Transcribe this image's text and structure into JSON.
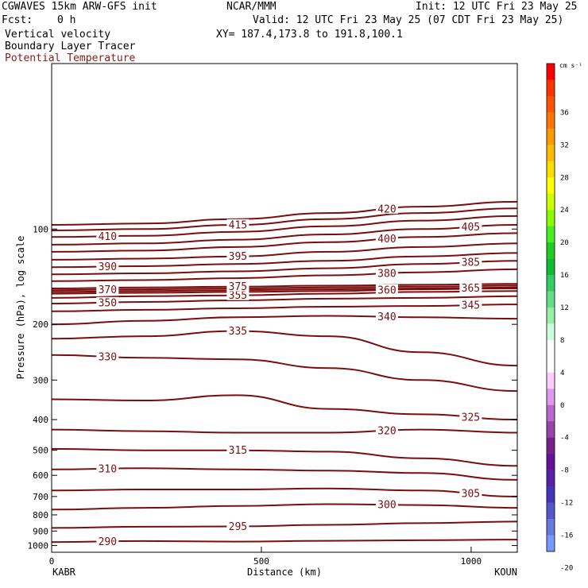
{
  "header": {
    "model": "CGWAVES 15km ARW-GFS init",
    "org": "NCAR/MMM",
    "init": "Init: 12 UTC Fri 23 May 25",
    "fcst_label": "Fcst:",
    "fcst_value": "0 h",
    "valid": "Valid: 12 UTC Fri 23 May 25 (07 CDT Fri 23 May 25)",
    "field1": "Vertical velocity",
    "xy": "XY= 187.4,173.8 to 191.8,100.1",
    "field2": "Boundary Layer Tracer",
    "field3": "Potential Temperature"
  },
  "colors": {
    "contour": "#7a0e0e",
    "field3_text": "#8b1a1a"
  },
  "chart_data": {
    "type": "line",
    "title": "",
    "xlabel": "Distance (km)",
    "ylabel": "Pressure (hPa), log scale",
    "y_scale": "log",
    "xlim": [
      0,
      1110
    ],
    "ylim": [
      1050,
      30
    ],
    "x_ticks": [
      0,
      500,
      1000
    ],
    "y_ticks": [
      100,
      200,
      300,
      400,
      500,
      600,
      700,
      800,
      900,
      1000
    ],
    "left_station": "KABR",
    "right_station": "KOUN",
    "x": [
      0,
      220,
      440,
      660,
      880,
      1110
    ],
    "series": [
      {
        "label": "290",
        "values": [
          975,
          968,
          972,
          966,
          962,
          958
        ]
      },
      {
        "label": "295",
        "values": [
          880,
          872,
          870,
          860,
          850,
          840
        ]
      },
      {
        "label": "300",
        "values": [
          770,
          760,
          750,
          740,
          745,
          760
        ]
      },
      {
        "label": "305",
        "values": [
          670,
          665,
          665,
          660,
          670,
          700
        ]
      },
      {
        "label": "310",
        "values": [
          575,
          570,
          575,
          580,
          590,
          620
        ]
      },
      {
        "label": "315",
        "values": [
          495,
          500,
          500,
          505,
          530,
          560
        ]
      },
      {
        "label": "320",
        "values": [
          430,
          435,
          440,
          440,
          430,
          440
        ]
      },
      {
        "label": "325",
        "values": [
          345,
          348,
          335,
          370,
          385,
          400
        ]
      },
      {
        "label": "330",
        "values": [
          250,
          255,
          258,
          275,
          300,
          325
        ]
      },
      {
        "label": "335",
        "values": [
          222,
          218,
          210,
          218,
          245,
          270
        ]
      },
      {
        "label": "340",
        "values": [
          200,
          195,
          190,
          188,
          190,
          192
        ]
      },
      {
        "label": "345",
        "values": [
          182,
          180,
          178,
          176,
          175,
          173
        ]
      },
      {
        "label": "350",
        "values": [
          172,
          170,
          168,
          166,
          165,
          163
        ]
      },
      {
        "label": "355",
        "values": [
          165,
          163,
          162,
          160,
          158,
          157
        ]
      },
      {
        "label": "360",
        "values": [
          160,
          159,
          158,
          157,
          155,
          154
        ]
      },
      {
        "label": "365",
        "values": [
          158,
          157,
          156,
          155,
          154,
          153
        ]
      },
      {
        "label": "370",
        "values": [
          156,
          155,
          154,
          153,
          152,
          151
        ]
      },
      {
        "label": "375",
        "values": [
          154,
          153,
          152,
          151,
          150,
          149
        ]
      },
      {
        "label": "380",
        "values": [
          146,
          145,
          143,
          140,
          137,
          134
        ]
      },
      {
        "label": "385",
        "values": [
          139,
          138,
          136,
          133,
          129,
          126
        ]
      },
      {
        "label": "390",
        "values": [
          132,
          131,
          129,
          126,
          122,
          119
        ]
      },
      {
        "label": "395",
        "values": [
          125,
          124,
          122,
          118,
          114,
          111
        ]
      },
      {
        "label": "400",
        "values": [
          118,
          117,
          114,
          110,
          106,
          103
        ]
      },
      {
        "label": "405",
        "values": [
          112,
          111,
          108,
          104,
          100,
          97
        ]
      },
      {
        "label": "410",
        "values": [
          106,
          105,
          102,
          98,
          94,
          91
        ]
      },
      {
        "label": "415",
        "values": [
          101,
          100,
          97,
          93,
          89,
          86
        ]
      },
      {
        "label": "420",
        "values": [
          97,
          96,
          93,
          89,
          85,
          82
        ]
      }
    ],
    "colorbar": {
      "unit": "cm s⁻¹",
      "labels": [
        "36",
        "32",
        "28",
        "24",
        "20",
        "16",
        "12",
        "8",
        "4",
        "0",
        "-4",
        "-8",
        "-12",
        "-16",
        "-20"
      ],
      "colors": [
        "#ff0000",
        "#ff3300",
        "#ff5500",
        "#ff7700",
        "#ff9900",
        "#ffbb00",
        "#ffdd00",
        "#ffff00",
        "#ccff00",
        "#88ff00",
        "#44ee22",
        "#22cc22",
        "#11bb33",
        "#33cc66",
        "#66dd88",
        "#99eeaa",
        "#ccffdd",
        "#ffffff",
        "#ffffff",
        "#ffccff",
        "#dd99ee",
        "#bb66cc",
        "#9944aa",
        "#772288",
        "#661199",
        "#5522aa",
        "#4433bb",
        "#5555cc",
        "#6677dd",
        "#7799ff"
      ]
    }
  }
}
